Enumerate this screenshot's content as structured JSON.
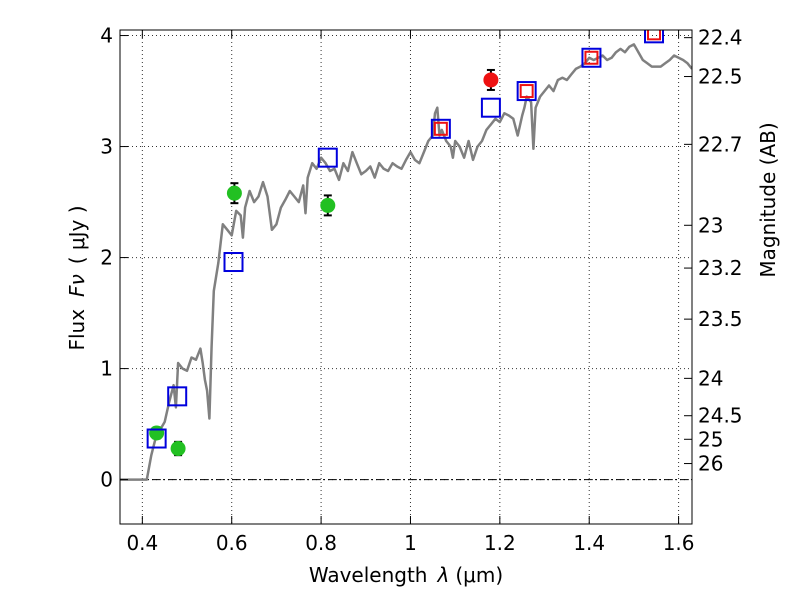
{
  "chart_data": {
    "type": "scatter",
    "xlabel_prefix": "Wavelength",
    "xlabel_symbol": "λ",
    "xlabel_unit": "(μm)",
    "ylabel_prefix": "Flux",
    "ylabel_symbol": "Fν",
    "ylabel_unit": "( μJy )",
    "y2label": "Magnitude (AB)",
    "xlim": [
      0.35,
      1.63
    ],
    "ylim": [
      -0.4,
      4.05
    ],
    "xticks": [
      {
        "value": 0.4,
        "label": "0.4"
      },
      {
        "value": 0.6,
        "label": "0.6"
      },
      {
        "value": 0.8,
        "label": "0.8"
      },
      {
        "value": 1.0,
        "label": "1"
      },
      {
        "value": 1.2,
        "label": "1.2"
      },
      {
        "value": 1.4,
        "label": "1.4"
      },
      {
        "value": 1.6,
        "label": "1.6"
      }
    ],
    "yticks": [
      {
        "value": 0,
        "label": "0"
      },
      {
        "value": 1,
        "label": "1"
      },
      {
        "value": 2,
        "label": "2"
      },
      {
        "value": 3,
        "label": "3"
      },
      {
        "value": 4,
        "label": "4"
      }
    ],
    "mag_ticks": [
      {
        "value": 22.4,
        "label": "22.4"
      },
      {
        "value": 22.5,
        "label": "22.5"
      },
      {
        "value": 22.7,
        "label": "22.7"
      },
      {
        "value": 23.0,
        "label": "23"
      },
      {
        "value": 23.2,
        "label": "23.2"
      },
      {
        "value": 23.5,
        "label": "23.5"
      },
      {
        "value": 24.0,
        "label": "24"
      },
      {
        "value": 24.5,
        "label": "24.5"
      },
      {
        "value": 25.0,
        "label": "25"
      },
      {
        "value": 26.0,
        "label": "26"
      }
    ],
    "grid": true,
    "zero_line": true,
    "colors": {
      "model": "#808080",
      "observed_green": "#22c022",
      "observed_red": "#ee1111",
      "model_box_blue": "#0000dd",
      "model_box_red": "#ee1111",
      "errorbar": "#000000"
    },
    "series": [
      {
        "name": "model-spectrum",
        "kind": "line",
        "points": [
          [
            0.35,
            0.0
          ],
          [
            0.4,
            0.0
          ],
          [
            0.41,
            0.0
          ],
          [
            0.42,
            0.22
          ],
          [
            0.43,
            0.38
          ],
          [
            0.44,
            0.45
          ],
          [
            0.45,
            0.52
          ],
          [
            0.46,
            0.7
          ],
          [
            0.47,
            0.85
          ],
          [
            0.475,
            0.65
          ],
          [
            0.48,
            1.05
          ],
          [
            0.49,
            1.0
          ],
          [
            0.5,
            0.98
          ],
          [
            0.51,
            1.1
          ],
          [
            0.52,
            1.08
          ],
          [
            0.53,
            1.18
          ],
          [
            0.535,
            1.05
          ],
          [
            0.54,
            0.9
          ],
          [
            0.545,
            0.8
          ],
          [
            0.55,
            0.55
          ],
          [
            0.555,
            1.2
          ],
          [
            0.56,
            1.7
          ],
          [
            0.57,
            1.95
          ],
          [
            0.58,
            2.3
          ],
          [
            0.59,
            2.25
          ],
          [
            0.6,
            2.2
          ],
          [
            0.61,
            2.42
          ],
          [
            0.62,
            2.38
          ],
          [
            0.625,
            2.18
          ],
          [
            0.63,
            2.45
          ],
          [
            0.64,
            2.6
          ],
          [
            0.65,
            2.5
          ],
          [
            0.66,
            2.55
          ],
          [
            0.67,
            2.68
          ],
          [
            0.68,
            2.55
          ],
          [
            0.69,
            2.25
          ],
          [
            0.7,
            2.3
          ],
          [
            0.71,
            2.45
          ],
          [
            0.72,
            2.52
          ],
          [
            0.73,
            2.6
          ],
          [
            0.74,
            2.55
          ],
          [
            0.75,
            2.5
          ],
          [
            0.76,
            2.65
          ],
          [
            0.765,
            2.4
          ],
          [
            0.77,
            2.72
          ],
          [
            0.78,
            2.85
          ],
          [
            0.79,
            2.8
          ],
          [
            0.8,
            2.9
          ],
          [
            0.81,
            2.85
          ],
          [
            0.82,
            2.78
          ],
          [
            0.83,
            2.8
          ],
          [
            0.84,
            2.7
          ],
          [
            0.85,
            2.85
          ],
          [
            0.86,
            2.78
          ],
          [
            0.87,
            2.95
          ],
          [
            0.88,
            2.85
          ],
          [
            0.89,
            2.75
          ],
          [
            0.9,
            2.78
          ],
          [
            0.91,
            2.82
          ],
          [
            0.92,
            2.72
          ],
          [
            0.93,
            2.85
          ],
          [
            0.94,
            2.8
          ],
          [
            0.95,
            2.78
          ],
          [
            0.96,
            2.85
          ],
          [
            0.97,
            2.82
          ],
          [
            0.98,
            2.8
          ],
          [
            0.99,
            2.88
          ],
          [
            1.0,
            2.95
          ],
          [
            1.01,
            2.88
          ],
          [
            1.02,
            2.85
          ],
          [
            1.03,
            2.95
          ],
          [
            1.04,
            3.05
          ],
          [
            1.05,
            3.1
          ],
          [
            1.055,
            3.3
          ],
          [
            1.06,
            3.35
          ],
          [
            1.065,
            3.1
          ],
          [
            1.07,
            3.15
          ],
          [
            1.08,
            3.05
          ],
          [
            1.09,
            3.0
          ],
          [
            1.095,
            2.9
          ],
          [
            1.1,
            3.05
          ],
          [
            1.11,
            3.0
          ],
          [
            1.12,
            2.9
          ],
          [
            1.13,
            3.05
          ],
          [
            1.14,
            2.88
          ],
          [
            1.15,
            3.0
          ],
          [
            1.16,
            3.05
          ],
          [
            1.17,
            3.15
          ],
          [
            1.18,
            3.2
          ],
          [
            1.19,
            3.25
          ],
          [
            1.2,
            3.22
          ],
          [
            1.21,
            3.3
          ],
          [
            1.22,
            3.28
          ],
          [
            1.23,
            3.25
          ],
          [
            1.24,
            3.1
          ],
          [
            1.25,
            3.28
          ],
          [
            1.255,
            3.35
          ],
          [
            1.26,
            3.45
          ],
          [
            1.27,
            3.4
          ],
          [
            1.275,
            2.98
          ],
          [
            1.28,
            3.35
          ],
          [
            1.29,
            3.45
          ],
          [
            1.3,
            3.5
          ],
          [
            1.31,
            3.55
          ],
          [
            1.32,
            3.5
          ],
          [
            1.33,
            3.6
          ],
          [
            1.34,
            3.62
          ],
          [
            1.35,
            3.6
          ],
          [
            1.36,
            3.65
          ],
          [
            1.37,
            3.7
          ],
          [
            1.38,
            3.72
          ],
          [
            1.39,
            3.75
          ],
          [
            1.4,
            3.8
          ],
          [
            1.41,
            3.78
          ],
          [
            1.42,
            3.8
          ],
          [
            1.43,
            3.82
          ],
          [
            1.44,
            3.78
          ],
          [
            1.45,
            3.8
          ],
          [
            1.46,
            3.85
          ],
          [
            1.47,
            3.88
          ],
          [
            1.48,
            3.85
          ],
          [
            1.49,
            3.9
          ],
          [
            1.5,
            3.92
          ],
          [
            1.51,
            3.85
          ],
          [
            1.52,
            3.78
          ],
          [
            1.53,
            3.75
          ],
          [
            1.54,
            3.72
          ],
          [
            1.55,
            3.72
          ],
          [
            1.56,
            3.72
          ],
          [
            1.57,
            3.75
          ],
          [
            1.58,
            3.78
          ],
          [
            1.59,
            3.82
          ],
          [
            1.6,
            3.8
          ],
          [
            1.61,
            3.78
          ],
          [
            1.62,
            3.75
          ],
          [
            1.63,
            3.7
          ]
        ]
      },
      {
        "name": "observed-photometry",
        "kind": "points",
        "points": [
          {
            "x": 0.432,
            "y": 0.42,
            "err": 0.05,
            "color": "green"
          },
          {
            "x": 0.48,
            "y": 0.28,
            "err": 0.06,
            "color": "green"
          },
          {
            "x": 0.606,
            "y": 2.58,
            "err": 0.09,
            "color": "green"
          },
          {
            "x": 0.815,
            "y": 2.47,
            "err": 0.09,
            "color": "green"
          },
          {
            "x": 1.18,
            "y": 3.6,
            "err": 0.09,
            "color": "red"
          }
        ]
      },
      {
        "name": "model-bandpass-flux",
        "kind": "boxes",
        "points": [
          {
            "x": 0.432,
            "y": 0.37,
            "color": "blue"
          },
          {
            "x": 0.478,
            "y": 0.75,
            "color": "blue"
          },
          {
            "x": 0.604,
            "y": 1.96,
            "color": "blue"
          },
          {
            "x": 0.815,
            "y": 2.9,
            "color": "blue"
          },
          {
            "x": 1.068,
            "y": 3.16,
            "color": "blue"
          },
          {
            "x": 1.068,
            "y": 3.16,
            "color": "red"
          },
          {
            "x": 1.18,
            "y": 3.35,
            "color": "blue"
          },
          {
            "x": 1.26,
            "y": 3.5,
            "color": "blue"
          },
          {
            "x": 1.26,
            "y": 3.5,
            "color": "red"
          },
          {
            "x": 1.405,
            "y": 3.8,
            "color": "blue"
          },
          {
            "x": 1.405,
            "y": 3.8,
            "color": "red"
          },
          {
            "x": 1.545,
            "y": 4.02,
            "color": "blue"
          },
          {
            "x": 1.545,
            "y": 4.02,
            "color": "red"
          }
        ]
      }
    ]
  }
}
